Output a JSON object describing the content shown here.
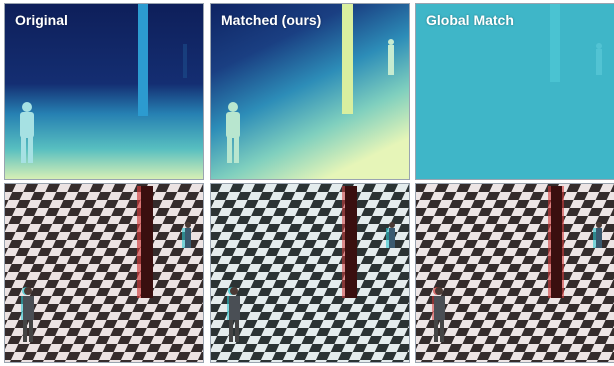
{
  "panels": [
    {
      "title": "Original",
      "depth_style": "original"
    },
    {
      "title": "Matched (ours)",
      "depth_style": "matched"
    },
    {
      "title": "Global Match",
      "depth_style": "global"
    }
  ],
  "colors": {
    "depth_far": "#0d1f5c",
    "depth_mid": "#2fa5c6",
    "depth_near": "#e6f5b8",
    "global_flat": "#3fb6c8",
    "pillar": "#7a1f1f",
    "floor_dark": "#2a2a2a",
    "floor_light": "#f2f2f2",
    "anaglyph_red": "#d23a3a",
    "anaglyph_cyan": "#2bc6cf"
  },
  "icons": [
    "person-silhouette",
    "pillar"
  ]
}
